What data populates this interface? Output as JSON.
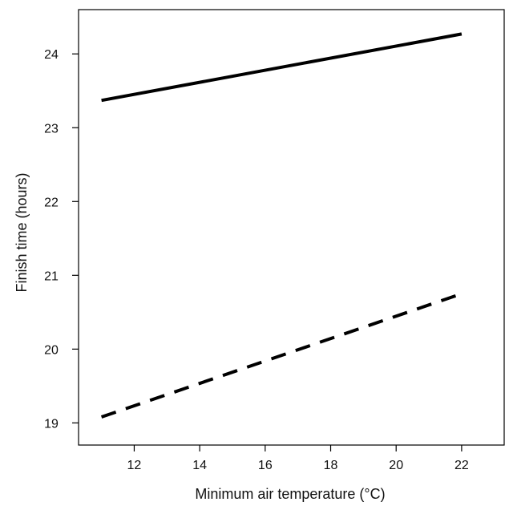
{
  "chart_data": {
    "type": "line",
    "title": "",
    "xlabel": "Minimum air temperature (°C)",
    "ylabel": "Finish time (hours)",
    "xlim": [
      10.3,
      23.3
    ],
    "ylim": [
      18.7,
      24.6
    ],
    "xticks": [
      12,
      14,
      16,
      18,
      20,
      22
    ],
    "yticks": [
      19,
      20,
      21,
      22,
      23,
      24
    ],
    "grid": false,
    "legend": "none",
    "series": [
      {
        "x": [
          11,
          22
        ],
        "y": [
          23.37,
          24.27
        ],
        "style": "solid",
        "color": "#000000"
      },
      {
        "x": [
          11,
          22
        ],
        "y": [
          19.08,
          20.75
        ],
        "style": "dashed",
        "color": "#000000"
      }
    ]
  }
}
